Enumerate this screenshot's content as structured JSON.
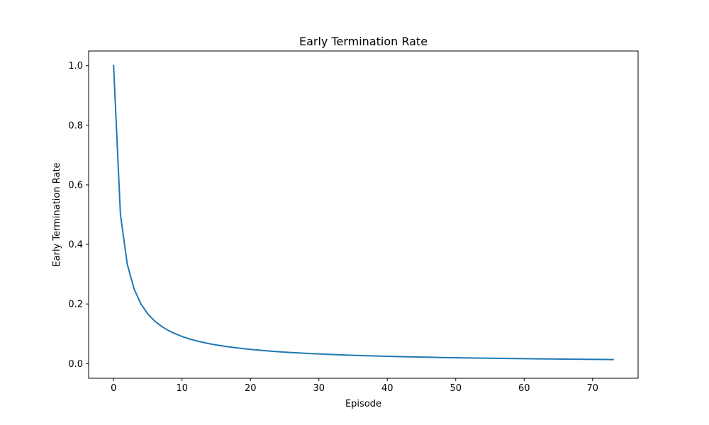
{
  "chart_data": {
    "type": "line",
    "title": "Early Termination Rate",
    "xlabel": "Episode",
    "ylabel": "Early Termination Rate",
    "xlim": [
      -3.65,
      76.65
    ],
    "ylim": [
      -0.0493,
      1.0493
    ],
    "xticks": [
      0,
      10,
      20,
      30,
      40,
      50,
      60,
      70
    ],
    "xtick_labels": [
      "0",
      "10",
      "20",
      "30",
      "40",
      "50",
      "60",
      "70"
    ],
    "yticks": [
      0.0,
      0.2,
      0.4,
      0.6,
      0.8,
      1.0
    ],
    "ytick_labels": [
      "0.0",
      "0.2",
      "0.4",
      "0.6",
      "0.8",
      "1.0"
    ],
    "grid": false,
    "series": [
      {
        "color": "#1f77b4",
        "x": [
          0,
          1,
          2,
          3,
          4,
          5,
          6,
          7,
          8,
          9,
          10,
          11,
          12,
          13,
          14,
          15,
          16,
          17,
          18,
          19,
          20,
          21,
          22,
          23,
          24,
          25,
          26,
          27,
          28,
          29,
          30,
          31,
          32,
          33,
          34,
          35,
          36,
          37,
          38,
          39,
          40,
          41,
          42,
          43,
          44,
          45,
          46,
          47,
          48,
          49,
          50,
          51,
          52,
          53,
          54,
          55,
          56,
          57,
          58,
          59,
          60,
          61,
          62,
          63,
          64,
          65,
          66,
          67,
          68,
          69,
          70,
          71,
          72,
          73
        ],
        "y": [
          1.0,
          0.5,
          0.3333,
          0.25,
          0.2,
          0.1667,
          0.1429,
          0.125,
          0.1111,
          0.1,
          0.0909,
          0.0833,
          0.0769,
          0.0714,
          0.0667,
          0.0625,
          0.0588,
          0.0556,
          0.0526,
          0.05,
          0.0476,
          0.0455,
          0.0435,
          0.0417,
          0.04,
          0.0385,
          0.037,
          0.0357,
          0.0345,
          0.0333,
          0.0323,
          0.0313,
          0.0303,
          0.0294,
          0.0286,
          0.0278,
          0.027,
          0.0263,
          0.0256,
          0.025,
          0.0244,
          0.0238,
          0.0233,
          0.0227,
          0.0222,
          0.0217,
          0.0213,
          0.0208,
          0.0204,
          0.02,
          0.0196,
          0.0192,
          0.0189,
          0.0185,
          0.0182,
          0.0179,
          0.0175,
          0.0172,
          0.0169,
          0.0167,
          0.0164,
          0.0161,
          0.0159,
          0.0156,
          0.0154,
          0.0152,
          0.0149,
          0.0147,
          0.0145,
          0.0143,
          0.0141,
          0.0139,
          0.0137,
          0.0135
        ]
      }
    ]
  }
}
